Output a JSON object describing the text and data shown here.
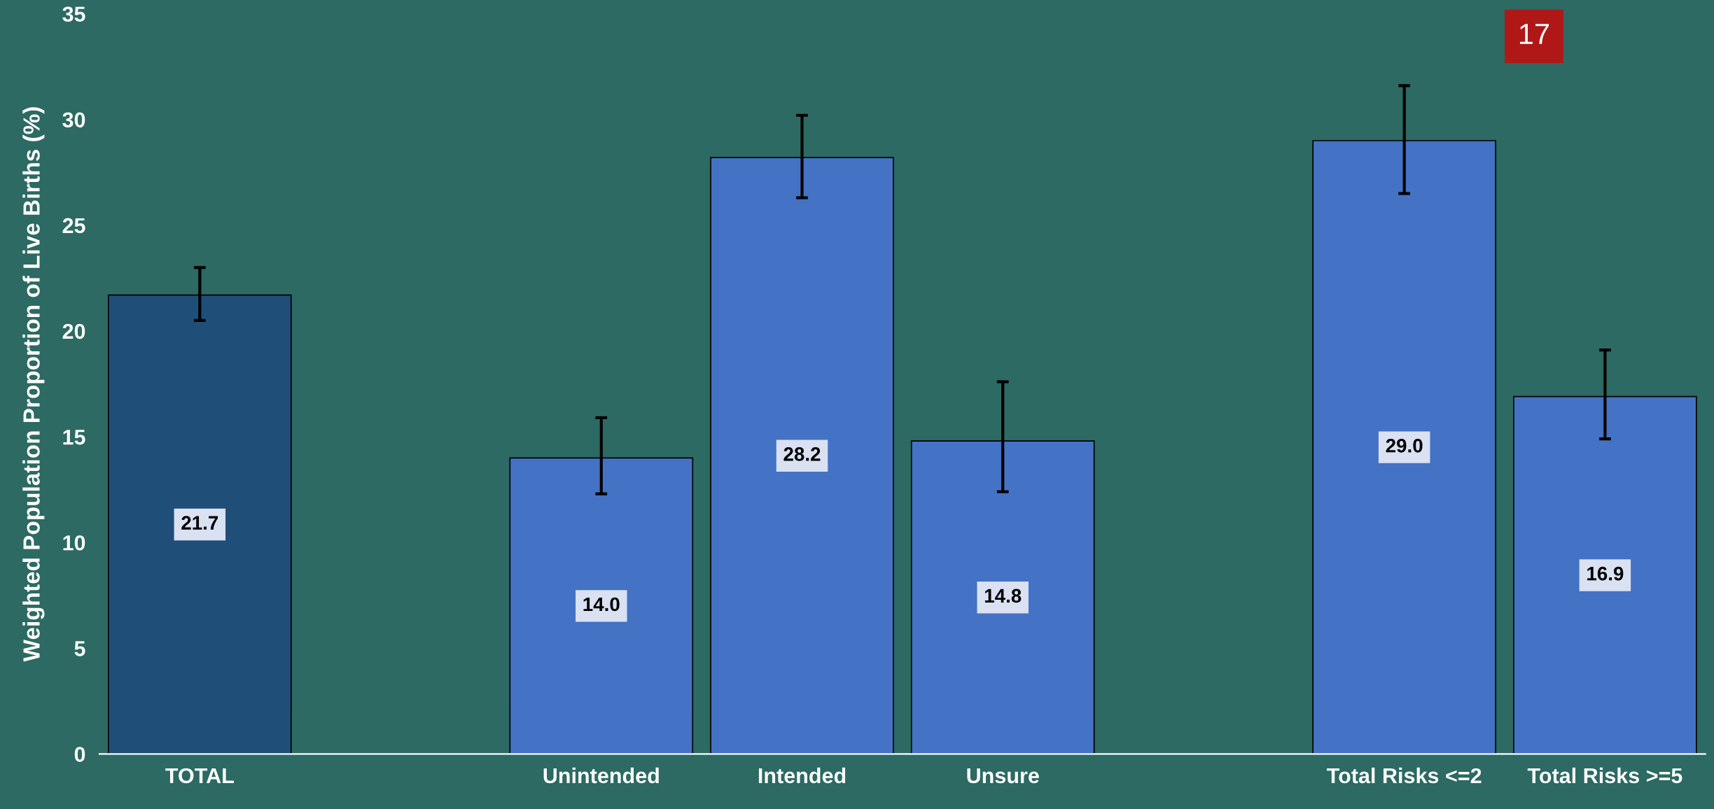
{
  "chart_data": {
    "type": "bar",
    "categories": [
      "TOTAL",
      null,
      "Unintended",
      "Intended",
      "Unsure",
      null,
      "Total Risks <=2",
      "Total Risks >=5"
    ],
    "values": [
      21.7,
      null,
      14.0,
      28.2,
      14.8,
      null,
      29.0,
      16.9
    ],
    "colors": [
      "#1f4e79",
      null,
      "#4472c4",
      "#4472c4",
      "#4472c4",
      null,
      "#4472c4",
      "#4472c4"
    ],
    "errors": [
      [
        20.5,
        23.0
      ],
      null,
      [
        12.3,
        15.9
      ],
      [
        26.3,
        30.2
      ],
      [
        12.4,
        17.6
      ],
      null,
      [
        26.5,
        31.6
      ],
      [
        14.9,
        19.1
      ]
    ],
    "value_labels": [
      "21.7",
      null,
      "14.0",
      "28.2",
      "14.8",
      null,
      "29.0",
      "16.9"
    ],
    "ylabel": "Weighted Population Proportion of Live Births (%)",
    "ylim": [
      0,
      35
    ],
    "yticks": [
      0,
      5,
      10,
      15,
      20,
      25,
      30,
      35
    ],
    "annotations": [
      "17"
    ],
    "grid": false,
    "legend": false
  }
}
